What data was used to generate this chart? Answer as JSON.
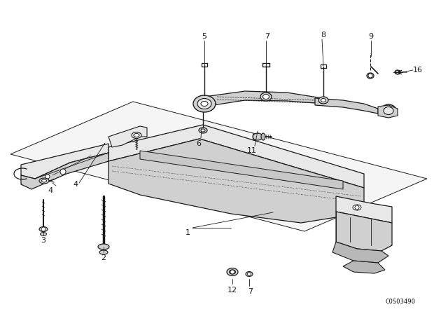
{
  "bg_color": "#ffffff",
  "line_color": "#1a1a1a",
  "diagram_code": "C0S03490",
  "figsize": [
    6.4,
    4.48
  ],
  "dpi": 100
}
